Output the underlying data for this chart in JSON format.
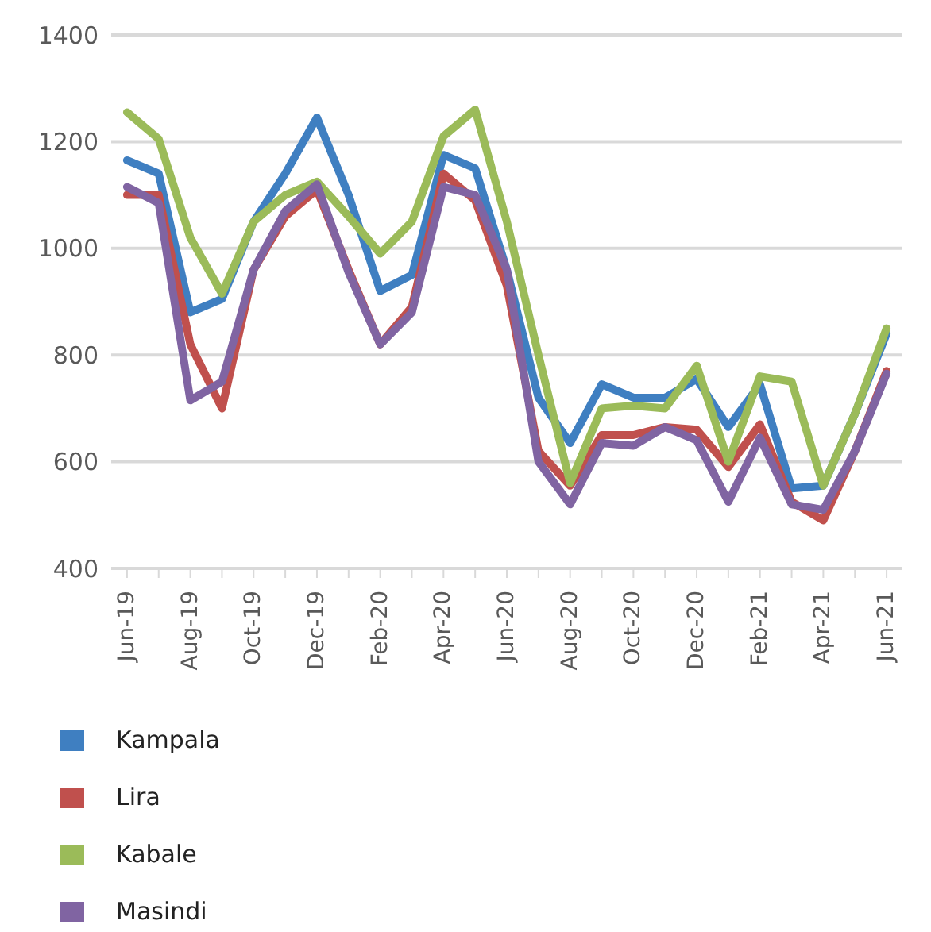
{
  "chart_data": {
    "type": "line",
    "categories": [
      "Jun-19",
      null,
      "Aug-19",
      null,
      "Oct-19",
      null,
      "Dec-19",
      null,
      "Feb-20",
      null,
      "Apr-20",
      null,
      "Jun-20",
      null,
      "Aug-20",
      null,
      "Oct-20",
      null,
      "Dec-20",
      null,
      "Feb-21",
      null,
      "Apr-21",
      null,
      "Jun-21"
    ],
    "series": [
      {
        "name": "Kampala",
        "color": "#3f7fc1",
        "values": [
          1165,
          1140,
          880,
          905,
          1050,
          1140,
          1245,
          1100,
          920,
          950,
          1175,
          1150,
          960,
          720,
          635,
          745,
          720,
          720,
          755,
          665,
          745,
          550,
          555,
          690,
          840
        ]
      },
      {
        "name": "Lira",
        "color": "#c0504d",
        "values": [
          1100,
          1100,
          820,
          700,
          960,
          1060,
          1110,
          960,
          820,
          890,
          1140,
          1090,
          930,
          620,
          555,
          650,
          650,
          665,
          660,
          590,
          670,
          525,
          490,
          620,
          770
        ]
      },
      {
        "name": "Kabale",
        "color": "#9bbb59",
        "values": [
          1255,
          1205,
          1020,
          915,
          1050,
          1100,
          1125,
          1060,
          990,
          1050,
          1210,
          1260,
          1050,
          800,
          560,
          700,
          705,
          700,
          780,
          600,
          760,
          750,
          555,
          690,
          850
        ]
      },
      {
        "name": "Masindi",
        "color": "#8064a2",
        "values": [
          1115,
          1085,
          715,
          750,
          960,
          1070,
          1120,
          955,
          820,
          880,
          1115,
          1100,
          960,
          600,
          520,
          635,
          630,
          665,
          640,
          525,
          645,
          520,
          510,
          620,
          765
        ]
      }
    ],
    "ylim": [
      400,
      1400
    ],
    "yticks": [
      400,
      600,
      800,
      1000,
      1200,
      1400
    ],
    "grid": "y",
    "legend": "bottom",
    "marker": "none",
    "line_style": "solid"
  }
}
